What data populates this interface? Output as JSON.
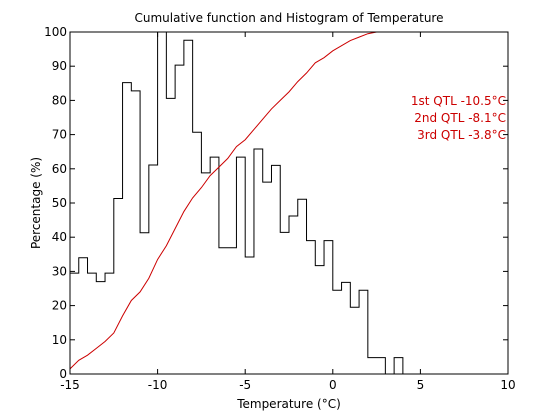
{
  "chart_data": {
    "type": "line",
    "title": "Cumulative function and Histogram of Temperature",
    "xlabel": "Temperature (°C)",
    "ylabel": "Percentage (%)",
    "xlim": [
      -15,
      10
    ],
    "ylim": [
      0,
      100
    ],
    "xticks": [
      "-15",
      "-10",
      "-5",
      "0",
      "5",
      "10"
    ],
    "yticks": [
      "0",
      "10",
      "20",
      "30",
      "40",
      "50",
      "60",
      "70",
      "80",
      "90",
      "100"
    ],
    "grid": false,
    "series": [
      {
        "kind": "histogram-stairs",
        "color": "#000000",
        "bin_width": 0.5,
        "bins": [
          [
            -15.0,
            29.5
          ],
          [
            -14.5,
            34.0
          ],
          [
            -14.0,
            29.5
          ],
          [
            -13.5,
            27.0
          ],
          [
            -13.0,
            29.5
          ],
          [
            -12.5,
            51.3
          ],
          [
            -12.0,
            85.2
          ],
          [
            -11.5,
            82.8
          ],
          [
            -11.0,
            41.3
          ],
          [
            -10.5,
            61.1
          ],
          [
            -10.0,
            100.0
          ],
          [
            -9.5,
            80.6
          ],
          [
            -9.0,
            90.3
          ],
          [
            -8.5,
            97.6
          ],
          [
            -8.0,
            70.7
          ],
          [
            -7.5,
            58.8
          ],
          [
            -7.0,
            63.4
          ],
          [
            -6.5,
            36.9
          ],
          [
            -6.0,
            36.9
          ],
          [
            -5.5,
            63.4
          ],
          [
            -5.0,
            34.2
          ],
          [
            -4.5,
            65.8
          ],
          [
            -4.0,
            56.1
          ],
          [
            -3.5,
            61.0
          ],
          [
            -3.0,
            41.4
          ],
          [
            -2.5,
            46.2
          ],
          [
            -2.0,
            51.1
          ],
          [
            -1.5,
            39.0
          ],
          [
            -1.0,
            31.7
          ],
          [
            -0.5,
            39.0
          ],
          [
            0.0,
            24.5
          ],
          [
            0.5,
            26.8
          ],
          [
            1.0,
            19.5
          ],
          [
            1.5,
            24.5
          ],
          [
            2.0,
            4.8
          ],
          [
            2.5,
            4.8
          ],
          [
            3.0,
            0.0
          ],
          [
            3.5,
            4.8
          ],
          [
            4.0,
            0.0
          ]
        ]
      },
      {
        "kind": "cumulative",
        "color": "#cc0000",
        "points": [
          [
            -15.0,
            1.5
          ],
          [
            -14.5,
            4.0
          ],
          [
            -14.0,
            5.5
          ],
          [
            -13.5,
            7.5
          ],
          [
            -13.0,
            9.5
          ],
          [
            -12.5,
            12.0
          ],
          [
            -12.0,
            17.0
          ],
          [
            -11.5,
            21.5
          ],
          [
            -11.0,
            24.0
          ],
          [
            -10.5,
            28.0
          ],
          [
            -10.0,
            33.5
          ],
          [
            -9.5,
            37.5
          ],
          [
            -9.0,
            42.5
          ],
          [
            -8.5,
            47.5
          ],
          [
            -8.0,
            51.5
          ],
          [
            -7.5,
            54.5
          ],
          [
            -7.0,
            58.0
          ],
          [
            -6.5,
            60.5
          ],
          [
            -6.0,
            63.0
          ],
          [
            -5.5,
            66.5
          ],
          [
            -5.0,
            68.5
          ],
          [
            -4.5,
            71.5
          ],
          [
            -4.0,
            74.5
          ],
          [
            -3.5,
            77.5
          ],
          [
            -3.0,
            80.0
          ],
          [
            -2.5,
            82.5
          ],
          [
            -2.0,
            85.5
          ],
          [
            -1.5,
            88.0
          ],
          [
            -1.0,
            91.0
          ],
          [
            -0.5,
            92.5
          ],
          [
            0.0,
            94.5
          ],
          [
            0.5,
            96.0
          ],
          [
            1.0,
            97.5
          ],
          [
            1.5,
            98.5
          ],
          [
            2.0,
            99.5
          ],
          [
            2.5,
            100.0
          ],
          [
            10.0,
            100.0
          ]
        ]
      }
    ],
    "annotations": {
      "color": "#cc0000",
      "q1": "1st QTL -10.5°C",
      "q2": "2nd QTL -8.1°C",
      "q3": "3rd QTL -3.8°C"
    }
  }
}
